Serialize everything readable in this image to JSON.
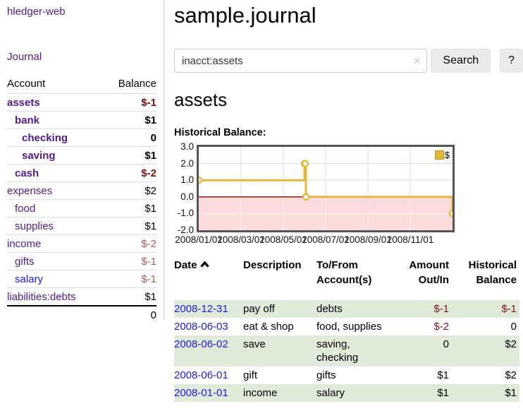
{
  "colors": {
    "purple": "#551a8b",
    "blue": "#1c1ce0",
    "neg-strong": "#7c0d0d",
    "neg-soft": "#b05c5c",
    "neg": "#801515",
    "row-green": "#dfead9",
    "gold": "#e3b63e",
    "gold-border": "#b9932c",
    "pink": "#fadcdc",
    "zero-line": "#8b0000",
    "grid": "#dddddd",
    "plot-border": "#555555",
    "btn-bg": "#ebebeb",
    "border-light": "#cccccc"
  },
  "app": {
    "brand": "hledger-web",
    "journal": "Journal"
  },
  "sidebar": {
    "headers": {
      "account": "Account",
      "balance": "Balance"
    },
    "accounts": [
      {
        "name": "assets",
        "balance": "$-1",
        "indent": 0,
        "bold": true,
        "balance_style": "negative-strong",
        "link_style": "purple"
      },
      {
        "name": "bank",
        "balance": "$1",
        "indent": 1,
        "bold": true,
        "balance_style": "normal",
        "link_style": "purple"
      },
      {
        "name": "checking",
        "balance": "0",
        "indent": 2,
        "bold": true,
        "balance_style": "normal",
        "link_style": "purple"
      },
      {
        "name": "saving",
        "balance": "$1",
        "indent": 2,
        "bold": true,
        "balance_style": "normal",
        "link_style": "purple"
      },
      {
        "name": "cash",
        "balance": "$-2",
        "indent": 1,
        "bold": true,
        "balance_style": "negative-strong",
        "link_style": "purple"
      },
      {
        "name": "expenses",
        "balance": "$2",
        "indent": 0,
        "bold": false,
        "balance_style": "normal",
        "link_style": "purple"
      },
      {
        "name": "food",
        "balance": "$1",
        "indent": 1,
        "bold": false,
        "balance_style": "normal",
        "link_style": "purple"
      },
      {
        "name": "supplies",
        "balance": "$1",
        "indent": 1,
        "bold": false,
        "balance_style": "normal",
        "link_style": "purple"
      },
      {
        "name": "income",
        "balance": "$-2",
        "indent": 0,
        "bold": false,
        "balance_style": "negative-soft",
        "link_style": "purple"
      },
      {
        "name": "gifts",
        "balance": "$-1",
        "indent": 1,
        "bold": false,
        "balance_style": "negative-soft",
        "link_style": "purple"
      },
      {
        "name": "salary",
        "balance": "$-1",
        "indent": 1,
        "bold": false,
        "balance_style": "negative-soft",
        "link_style": "blue"
      },
      {
        "name": "liabilities:debts",
        "balance": "$1",
        "indent": 0,
        "bold": false,
        "balance_style": "normal",
        "link_style": "purple"
      }
    ],
    "total": "0"
  },
  "main": {
    "title": "sample.journal",
    "search": {
      "value": "inacct:assets",
      "clear_icon": "✕",
      "button_label": "Search",
      "help_label": "?"
    },
    "account_heading": "assets",
    "chart_label": "Historical Balance:"
  },
  "chart_data": {
    "type": "line",
    "step": true,
    "legend_label": "$",
    "legend_position": "top-right",
    "grid": true,
    "ylim": [
      -2.0,
      3.0
    ],
    "y_ticks": [
      "3.0",
      "2.0",
      "1.0",
      "0.0",
      "-1.0",
      "-2.0"
    ],
    "y_tick_values": [
      3,
      2,
      1,
      0,
      -1,
      -2
    ],
    "x_ticks": [
      "2008/01/01",
      "2008/03/01",
      "2008/05/01",
      "2008/07/01",
      "2008/09/01",
      "2008/11/01"
    ],
    "x_start": "2008-01-01",
    "x_range_months": 12,
    "negative_region_shaded": true,
    "series": [
      {
        "name": "$",
        "points": [
          [
            "2008-01-01",
            1
          ],
          [
            "2008-06-01",
            2
          ],
          [
            "2008-06-02",
            2
          ],
          [
            "2008-06-03",
            0
          ],
          [
            "2008-12-31",
            -1
          ]
        ]
      }
    ]
  },
  "register": {
    "headers": {
      "date": "Date",
      "description": "Description",
      "accounts": "To/From\nAccount(s)",
      "amount": "Amount\nOut/In",
      "balance": "Historical\nBalance"
    },
    "rows": [
      {
        "date": "2008-12-31",
        "description": "pay off",
        "accounts": "debts",
        "amount": "$-1",
        "amount_negative": true,
        "balance": "$-1",
        "balance_negative": true
      },
      {
        "date": "2008-06-03",
        "description": "eat & shop",
        "accounts": "food, supplies",
        "amount": "$-2",
        "amount_negative": true,
        "balance": "0",
        "balance_negative": false
      },
      {
        "date": "2008-06-02",
        "description": "save",
        "accounts": "saving,\nchecking",
        "amount": "0",
        "amount_negative": false,
        "balance": "$2",
        "balance_negative": false
      },
      {
        "date": "2008-06-01",
        "description": "gift",
        "accounts": "gifts",
        "amount": "$1",
        "amount_negative": false,
        "balance": "$2",
        "balance_negative": false
      },
      {
        "date": "2008-01-01",
        "description": "income",
        "accounts": "salary",
        "amount": "$1",
        "amount_negative": false,
        "balance": "$1",
        "balance_negative": false
      }
    ]
  }
}
